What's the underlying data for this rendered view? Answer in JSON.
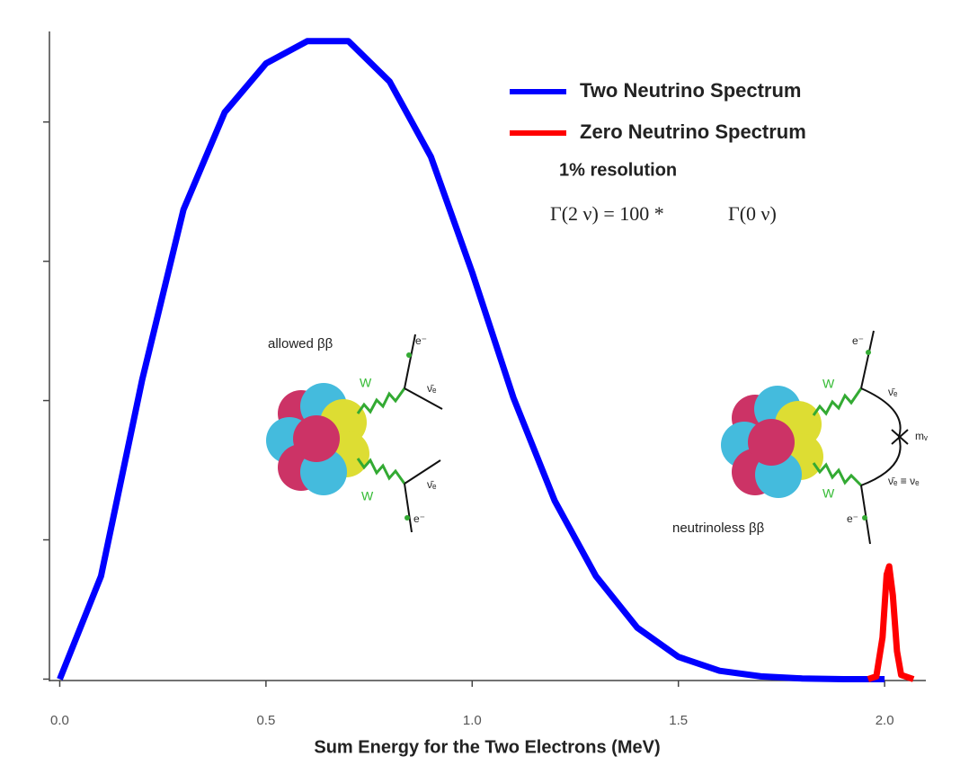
{
  "chart_data": {
    "type": "line",
    "xlabel": "Sum Energy for the Two Electrons (MeV)",
    "xlim": [
      -0.025,
      2.1
    ],
    "ylim": [
      -0.01,
      4.65
    ],
    "xticks": [
      {
        "value": 0,
        "label": "0.0"
      },
      0.5,
      {
        "value": 1,
        "label": "1.0"
      },
      1.5,
      {
        "value": 2,
        "label": "2.0"
      }
    ],
    "yticks": [
      0,
      1,
      2,
      3,
      4
    ],
    "legend": "upper right",
    "series": [
      {
        "name": "Two Neutrino Spectrum",
        "color": "#0000ff",
        "x": [
          0,
          0.1,
          0.2,
          0.3,
          0.4,
          0.5,
          0.6,
          0.7,
          0.8,
          0.9,
          1.0,
          1.1,
          1.2,
          1.3,
          1.4,
          1.5,
          1.6,
          1.7,
          1.8,
          1.9,
          2.0
        ],
        "values": [
          0,
          0.74,
          2.15,
          3.37,
          4.07,
          4.42,
          4.58,
          4.58,
          4.29,
          3.75,
          2.92,
          2.02,
          1.28,
          0.74,
          0.37,
          0.16,
          0.06,
          0.02,
          0.005,
          0,
          0
        ]
      },
      {
        "name": "Zero Neutrino Spectrum",
        "color": "#ff0000",
        "x": [
          1.96,
          1.98,
          1.995,
          2.005,
          2.011,
          2.02,
          2.03,
          2.04,
          2.07
        ],
        "values": [
          0,
          0.02,
          0.3,
          0.75,
          0.81,
          0.6,
          0.2,
          0.03,
          0
        ]
      }
    ],
    "annotations": [
      "1% resolution",
      "Γ(2 ν) = 100 *",
      "Γ(0 ν)"
    ],
    "diagram_labels": [
      "allowed ββ",
      "W",
      "W",
      "e⁻",
      "e⁻",
      "ν̄ₑ",
      "ν̄ₑ",
      "neutrinoless ββ",
      "W",
      "W",
      "e⁻",
      "e⁻",
      "ν̄ₑ",
      "mᵥ",
      "ν̄ₑ ≡ νₑ"
    ]
  }
}
